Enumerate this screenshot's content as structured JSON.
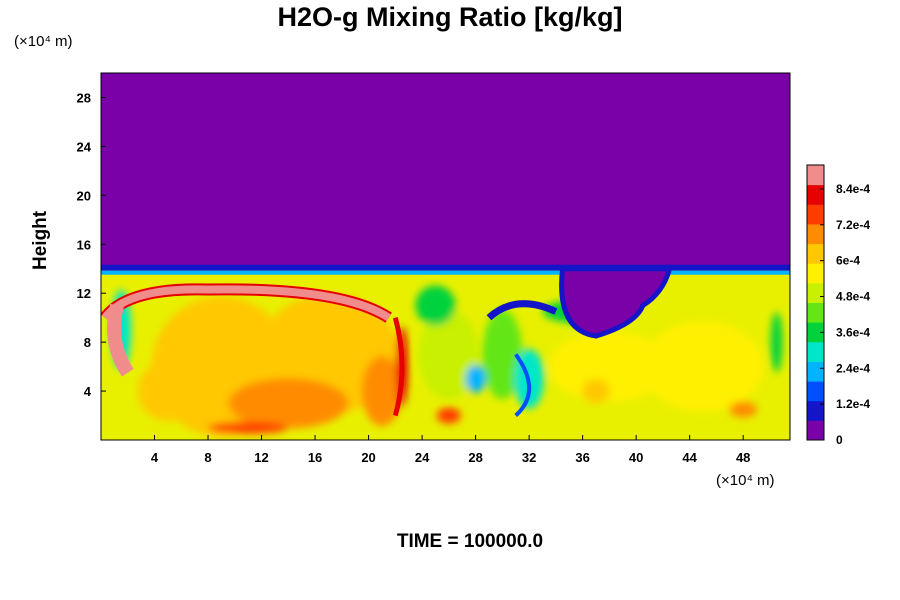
{
  "chart_data": {
    "type": "heatmap",
    "title": "H2O-g Mixing Ratio [kg/kg]",
    "ylabel": "Height",
    "x_unit": "(×10⁴ m)",
    "y_unit": "(×10⁴ m)",
    "xlim": [
      0,
      51.5
    ],
    "ylim": [
      0,
      30
    ],
    "x_ticks": [
      "4",
      "8",
      "12",
      "16",
      "20",
      "24",
      "28",
      "32",
      "36",
      "40",
      "44",
      "48"
    ],
    "y_ticks": [
      "4",
      "8",
      "12",
      "16",
      "20",
      "24",
      "28"
    ],
    "colorbar": {
      "range": [
        0,
        0.00092
      ],
      "tick_labels": [
        "0",
        "1.2e-4",
        "2.4e-4",
        "3.6e-4",
        "4.8e-4",
        "6e-4",
        "7.2e-4",
        "8.4e-4"
      ],
      "colors": [
        "#7a00a8",
        "#1414c8",
        "#0050ff",
        "#00b4ff",
        "#00e6c8",
        "#00d23c",
        "#64e614",
        "#c8f000",
        "#fff000",
        "#ffc800",
        "#ff8c00",
        "#ff3c00",
        "#e60000",
        "#f08c8c"
      ]
    },
    "field_description_regions": {
      "upper_dry_layer_top": 30,
      "boundary_height": 14,
      "background_value": 0
    }
  },
  "footer": {
    "time_label": "TIME = 100000.0"
  }
}
